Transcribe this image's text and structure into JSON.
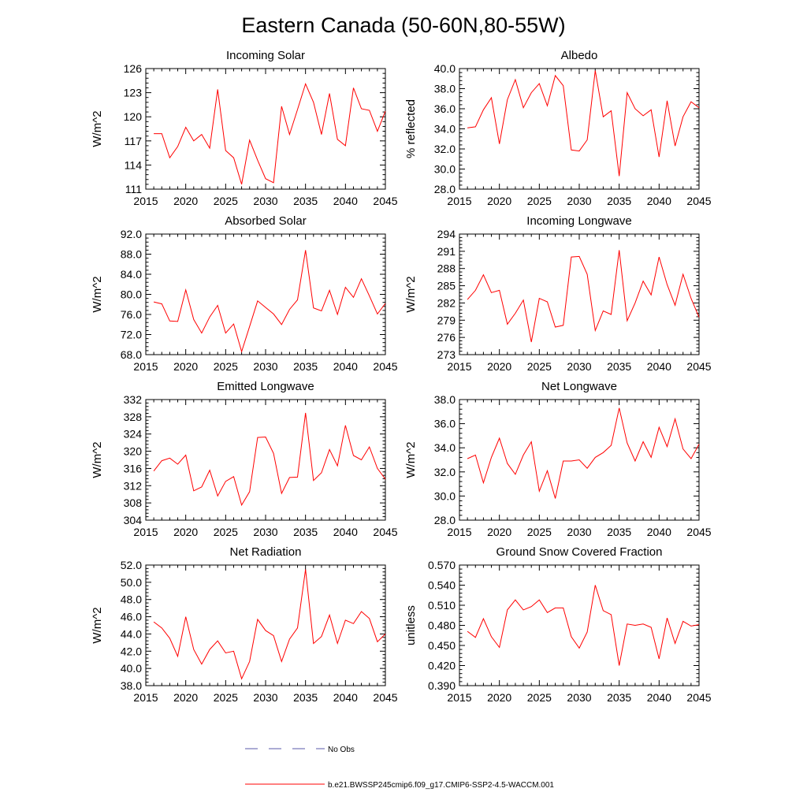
{
  "figure": {
    "title": "Eastern Canada (50-60N,80-55W)"
  },
  "legend": {
    "entries": [
      {
        "label": "No Obs",
        "color": "#5a5aa8",
        "dash": "dashed"
      },
      {
        "label": "b.e21.BWSSP245cmip6.f09_g17.CMIP6-SSP2-4.5-WACCM.001",
        "color": "#ff0000",
        "dash": "solid"
      }
    ]
  },
  "chart_data": [
    {
      "type": "line",
      "title": "Incoming Solar",
      "ylabel": "W/m^2",
      "xlim": [
        2015,
        2045
      ],
      "ylim": [
        111,
        126
      ],
      "xticks": [
        2015,
        2020,
        2025,
        2030,
        2035,
        2040,
        2045
      ],
      "yticks": [
        "111",
        "114",
        "117",
        "120",
        "123",
        "126"
      ],
      "grid": false,
      "series": [
        {
          "color": "#ff0000",
          "x": [
            2016,
            2017,
            2018,
            2019,
            2020,
            2021,
            2022,
            2023,
            2024,
            2025,
            2026,
            2027,
            2028,
            2029,
            2030,
            2031,
            2032,
            2033,
            2034,
            2035,
            2036,
            2037,
            2038,
            2039,
            2040,
            2041,
            2042,
            2043,
            2044,
            2045
          ],
          "values": [
            117.9,
            117.9,
            114.9,
            116.3,
            118.7,
            117.0,
            117.8,
            116.1,
            123.4,
            115.8,
            114.9,
            111.6,
            117.1,
            114.6,
            112.3,
            111.8,
            121.3,
            117.8,
            120.9,
            124.1,
            121.8,
            117.8,
            122.9,
            117.2,
            116.4,
            123.6,
            121.0,
            120.8,
            118.2,
            120.7
          ]
        }
      ]
    },
    {
      "type": "line",
      "title": "Albedo",
      "ylabel": "% reflected",
      "xlim": [
        2015,
        2045
      ],
      "ylim": [
        28.0,
        40.0
      ],
      "xticks": [
        2015,
        2020,
        2025,
        2030,
        2035,
        2040,
        2045
      ],
      "yticks": [
        "28.0",
        "30.0",
        "32.0",
        "34.0",
        "36.0",
        "38.0",
        "40.0"
      ],
      "grid": false,
      "series": [
        {
          "color": "#ff0000",
          "x": [
            2016,
            2017,
            2018,
            2019,
            2020,
            2021,
            2022,
            2023,
            2024,
            2025,
            2026,
            2027,
            2028,
            2029,
            2030,
            2031,
            2032,
            2033,
            2034,
            2035,
            2036,
            2037,
            2038,
            2039,
            2040,
            2041,
            2042,
            2043,
            2044,
            2045
          ],
          "values": [
            34.1,
            34.2,
            35.9,
            37.1,
            32.5,
            36.9,
            38.9,
            36.1,
            37.6,
            38.5,
            36.3,
            39.3,
            38.3,
            31.9,
            31.8,
            32.9,
            39.8,
            35.2,
            35.8,
            29.3,
            37.6,
            36.0,
            35.3,
            35.9,
            31.2,
            36.8,
            32.3,
            35.2,
            36.7,
            36.1
          ]
        }
      ]
    },
    {
      "type": "line",
      "title": "Absorbed Solar",
      "ylabel": "W/m^2",
      "xlim": [
        2015,
        2045
      ],
      "ylim": [
        68.0,
        92.0
      ],
      "xticks": [
        2015,
        2020,
        2025,
        2030,
        2035,
        2040,
        2045
      ],
      "yticks": [
        "68.0",
        "72.0",
        "76.0",
        "80.0",
        "84.0",
        "88.0",
        "92.0"
      ],
      "grid": false,
      "series": [
        {
          "color": "#ff0000",
          "x": [
            2016,
            2017,
            2018,
            2019,
            2020,
            2021,
            2022,
            2023,
            2024,
            2025,
            2026,
            2027,
            2028,
            2029,
            2030,
            2031,
            2032,
            2033,
            2034,
            2035,
            2036,
            2037,
            2038,
            2039,
            2040,
            2041,
            2042,
            2043,
            2044,
            2045
          ],
          "values": [
            78.5,
            78.1,
            74.7,
            74.6,
            80.9,
            75.0,
            72.3,
            75.5,
            77.8,
            72.3,
            74.1,
            68.6,
            73.6,
            78.7,
            77.4,
            76.1,
            74.0,
            77.0,
            78.9,
            88.8,
            77.3,
            76.7,
            80.8,
            76.0,
            81.4,
            79.4,
            83.1,
            79.7,
            76.1,
            78.2
          ]
        }
      ]
    },
    {
      "type": "line",
      "title": "Incoming Longwave",
      "ylabel": "W/m^2",
      "xlim": [
        2015,
        2045
      ],
      "ylim": [
        273,
        294
      ],
      "xticks": [
        2015,
        2020,
        2025,
        2030,
        2035,
        2040,
        2045
      ],
      "yticks": [
        "273",
        "276",
        "279",
        "282",
        "285",
        "288",
        "291",
        "294"
      ],
      "grid": false,
      "series": [
        {
          "color": "#ff0000",
          "x": [
            2016,
            2017,
            2018,
            2019,
            2020,
            2021,
            2022,
            2023,
            2024,
            2025,
            2026,
            2027,
            2028,
            2029,
            2030,
            2031,
            2032,
            2033,
            2034,
            2035,
            2036,
            2037,
            2038,
            2039,
            2040,
            2041,
            2042,
            2043,
            2044,
            2045
          ],
          "values": [
            282.6,
            284.2,
            286.9,
            283.8,
            284.2,
            278.3,
            280.2,
            282.5,
            275.2,
            282.8,
            282.2,
            277.8,
            278.1,
            290.0,
            290.1,
            287.0,
            277.2,
            280.6,
            280.0,
            291.2,
            278.9,
            282.0,
            285.8,
            283.4,
            290.0,
            285.2,
            281.6,
            287.0,
            282.8,
            279.5
          ]
        }
      ]
    },
    {
      "type": "line",
      "title": "Emitted Longwave",
      "ylabel": "W/m^2",
      "xlim": [
        2015,
        2045
      ],
      "ylim": [
        304,
        332
      ],
      "xticks": [
        2015,
        2020,
        2025,
        2030,
        2035,
        2040,
        2045
      ],
      "yticks": [
        "304",
        "308",
        "312",
        "316",
        "320",
        "324",
        "328",
        "332"
      ],
      "grid": false,
      "series": [
        {
          "color": "#ff0000",
          "x": [
            2016,
            2017,
            2018,
            2019,
            2020,
            2021,
            2022,
            2023,
            2024,
            2025,
            2026,
            2027,
            2028,
            2029,
            2030,
            2031,
            2032,
            2033,
            2034,
            2035,
            2036,
            2037,
            2038,
            2039,
            2040,
            2041,
            2042,
            2043,
            2044,
            2045
          ],
          "values": [
            315.4,
            317.8,
            318.4,
            317.0,
            319.1,
            310.8,
            311.7,
            315.6,
            309.6,
            313.0,
            314.1,
            307.5,
            310.6,
            323.2,
            323.3,
            319.5,
            310.2,
            313.9,
            314.0,
            328.9,
            313.2,
            315.0,
            320.4,
            316.6,
            326.0,
            319.0,
            318.0,
            321.0,
            316.0,
            313.5
          ]
        }
      ]
    },
    {
      "type": "line",
      "title": "Net Longwave",
      "ylabel": "W/m^2",
      "xlim": [
        2015,
        2045
      ],
      "ylim": [
        28.0,
        38.0
      ],
      "xticks": [
        2015,
        2020,
        2025,
        2030,
        2035,
        2040,
        2045
      ],
      "yticks": [
        "28.0",
        "30.0",
        "32.0",
        "34.0",
        "36.0",
        "38.0"
      ],
      "grid": false,
      "series": [
        {
          "color": "#ff0000",
          "x": [
            2016,
            2017,
            2018,
            2019,
            2020,
            2021,
            2022,
            2023,
            2024,
            2025,
            2026,
            2027,
            2028,
            2029,
            2030,
            2031,
            2032,
            2033,
            2034,
            2035,
            2036,
            2037,
            2038,
            2039,
            2040,
            2041,
            2042,
            2043,
            2044,
            2045
          ],
          "values": [
            33.1,
            33.4,
            31.1,
            33.2,
            34.8,
            32.7,
            31.8,
            33.4,
            34.5,
            30.4,
            32.1,
            29.8,
            32.9,
            32.9,
            33.0,
            32.3,
            33.2,
            33.6,
            34.2,
            37.3,
            34.4,
            32.9,
            34.5,
            33.2,
            35.7,
            34.1,
            36.4,
            33.9,
            33.1,
            34.3
          ]
        }
      ]
    },
    {
      "type": "line",
      "title": "Net Radiation",
      "ylabel": "W/m^2",
      "xlim": [
        2015,
        2045
      ],
      "ylim": [
        38.0,
        52.0
      ],
      "xticks": [
        2015,
        2020,
        2025,
        2030,
        2035,
        2040,
        2045
      ],
      "yticks": [
        "38.0",
        "40.0",
        "42.0",
        "44.0",
        "46.0",
        "48.0",
        "50.0",
        "52.0"
      ],
      "grid": false,
      "series": [
        {
          "color": "#ff0000",
          "x": [
            2016,
            2017,
            2018,
            2019,
            2020,
            2021,
            2022,
            2023,
            2024,
            2025,
            2026,
            2027,
            2028,
            2029,
            2030,
            2031,
            2032,
            2033,
            2034,
            2035,
            2036,
            2037,
            2038,
            2039,
            2040,
            2041,
            2042,
            2043,
            2044,
            2045
          ],
          "values": [
            45.4,
            44.7,
            43.5,
            41.4,
            46.0,
            42.2,
            40.5,
            42.2,
            43.2,
            41.8,
            42.0,
            38.8,
            40.8,
            45.7,
            44.4,
            43.8,
            40.8,
            43.4,
            44.7,
            51.5,
            42.9,
            43.7,
            46.2,
            42.9,
            45.6,
            45.2,
            46.6,
            45.8,
            43.1,
            44.0
          ]
        }
      ]
    },
    {
      "type": "line",
      "title": "Ground Snow Covered Fraction",
      "ylabel": "unitless",
      "xlim": [
        2015,
        2045
      ],
      "ylim": [
        0.39,
        0.57
      ],
      "xticks": [
        2015,
        2020,
        2025,
        2030,
        2035,
        2040,
        2045
      ],
      "yticks": [
        "0.390",
        "0.420",
        "0.450",
        "0.480",
        "0.510",
        "0.540",
        "0.570"
      ],
      "grid": false,
      "series": [
        {
          "color": "#ff0000",
          "x": [
            2016,
            2017,
            2018,
            2019,
            2020,
            2021,
            2022,
            2023,
            2024,
            2025,
            2026,
            2027,
            2028,
            2029,
            2030,
            2031,
            2032,
            2033,
            2034,
            2035,
            2036,
            2037,
            2038,
            2039,
            2040,
            2041,
            2042,
            2043,
            2044,
            2045
          ],
          "values": [
            0.471,
            0.462,
            0.49,
            0.463,
            0.447,
            0.503,
            0.518,
            0.503,
            0.508,
            0.518,
            0.499,
            0.506,
            0.506,
            0.463,
            0.446,
            0.47,
            0.54,
            0.502,
            0.496,
            0.42,
            0.482,
            0.48,
            0.482,
            0.477,
            0.43,
            0.491,
            0.453,
            0.486,
            0.479,
            0.481
          ]
        }
      ]
    }
  ]
}
